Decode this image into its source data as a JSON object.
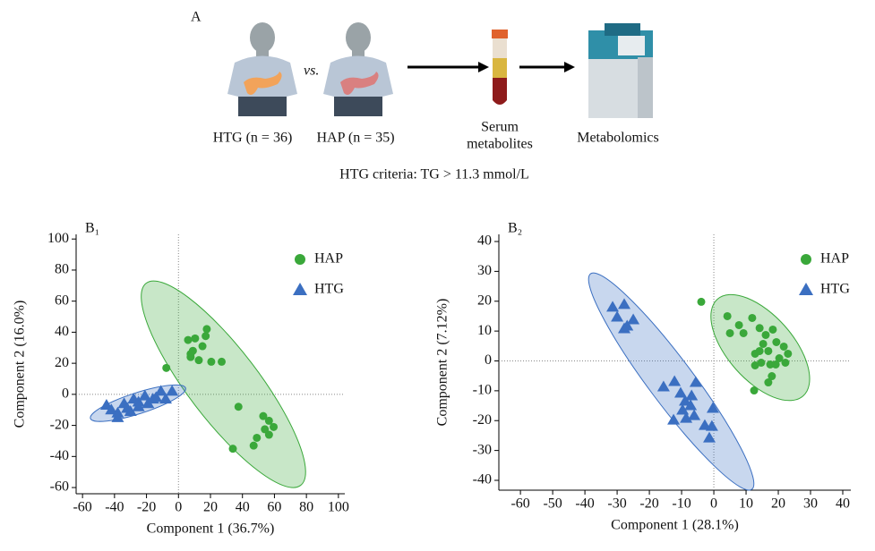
{
  "panel_a": {
    "label": "A",
    "groups": [
      "HTG (n = 36)",
      "HAP (n = 35)"
    ],
    "versus": "vs.",
    "sample": [
      "Serum",
      "metabolites"
    ],
    "method": "Metabolomics",
    "criteria": "HTG criteria: TG > 11.3 mmol/L"
  },
  "chart_data": [
    {
      "type": "scatter",
      "title": "B₁",
      "x_label": "Component 1 (36.7%)",
      "y_label": "Component 2 (16.0%)",
      "xlim": [
        -64,
        104
      ],
      "xticks": [
        -60,
        -40,
        -20,
        0,
        20,
        40,
        60,
        80,
        100
      ],
      "ylim": [
        -64,
        103
      ],
      "yticks": [
        -60,
        -40,
        -20,
        0,
        20,
        40,
        60,
        80,
        100
      ],
      "zero_lines": true,
      "ellipses": true,
      "series": [
        {
          "name": "HAP",
          "color": "#3aa83a",
          "marker": "circle",
          "x": [
            7.6,
            6,
            10.4,
            15,
            17.7,
            17,
            9,
            12.7,
            7.6,
            20.5,
            27,
            -7.6,
            37.5,
            53,
            56.6,
            59.5,
            54,
            56.6,
            49,
            47,
            34
          ],
          "y": [
            26,
            35,
            36,
            31,
            42,
            37.5,
            28,
            22,
            24,
            21,
            21,
            17,
            -8,
            -14,
            -17,
            -21,
            -22.5,
            -26,
            -28,
            -33,
            -35
          ]
        },
        {
          "name": "HTG",
          "color": "#3b6fc1",
          "marker": "triangle",
          "x": [
            -45,
            -42,
            -38,
            -38,
            -34,
            -30,
            -28,
            -25,
            -21,
            -19,
            -16,
            -14,
            -11,
            -8,
            -4,
            -25,
            -32
          ],
          "y": [
            -7,
            -10,
            -12,
            -15,
            -6,
            -11,
            -3,
            -5,
            -1,
            -6,
            -3,
            -2,
            2,
            -3,
            2,
            -8,
            -9
          ]
        }
      ]
    },
    {
      "type": "scatter",
      "title": "B₂",
      "x_label": "Component 1 (28.1%)",
      "y_label": "Component 2 (7.12%)",
      "xlim": [
        -66.7,
        42.5
      ],
      "xticks": [
        -60,
        -50,
        -40,
        -30,
        -20,
        -10,
        0,
        10,
        20,
        30,
        40
      ],
      "ylim": [
        -43.3,
        42.4
      ],
      "yticks": [
        -40,
        -30,
        -20,
        -10,
        0,
        10,
        20,
        30,
        40
      ],
      "zero_lines": true,
      "ellipses": true,
      "series": [
        {
          "name": "HAP",
          "color": "#3aa83a",
          "marker": "circle",
          "x": [
            -3.9,
            4.2,
            5,
            7.8,
            9.2,
            11.9,
            14.2,
            16.1,
            18.3,
            19.4,
            15.3,
            16.9,
            21.7,
            23,
            20.3,
            17.5,
            19.2,
            22.2,
            14.7,
            12.8,
            12.8,
            16.9,
            18,
            12.5,
            14.2
          ],
          "y": [
            19.8,
            15,
            9.3,
            12,
            9.3,
            14.4,
            11,
            8.7,
            10.5,
            6.3,
            5.7,
            3.3,
            4.8,
            2.4,
            0.9,
            -1.2,
            -1.2,
            -0.6,
            -0.6,
            -1.5,
            2.4,
            -7.2,
            -5.1,
            -9.9,
            3.3
          ]
        },
        {
          "name": "HTG",
          "color": "#3b6fc1",
          "marker": "triangle",
          "x": [
            -31.4,
            -27.8,
            -30,
            -26.9,
            -25,
            -27.8,
            -15.6,
            -12.2,
            -10.3,
            -6.9,
            -5.6,
            -8.9,
            -7.2,
            -9.7,
            -12.5,
            -6.1,
            -8.6,
            -2.8,
            -0.6,
            -0.3,
            -1.4
          ],
          "y": [
            18,
            18.9,
            14.7,
            11.7,
            13.8,
            10.8,
            -8.7,
            -6.9,
            -10.8,
            -11.7,
            -7.2,
            -13.5,
            -15,
            -16.5,
            -19.8,
            -18.3,
            -19.2,
            -21.6,
            -21.9,
            -15.9,
            -25.8
          ]
        }
      ]
    }
  ]
}
